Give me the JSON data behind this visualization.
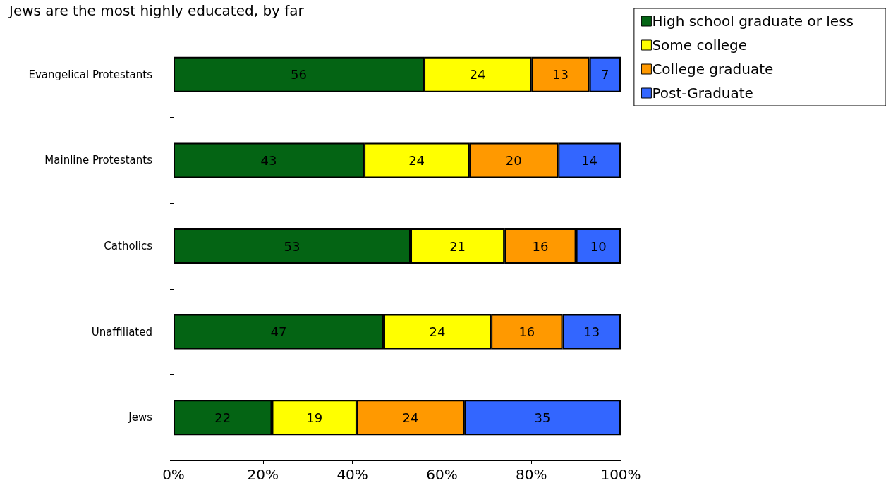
{
  "chart_data": {
    "type": "bar",
    "orientation": "horizontal",
    "stacked": true,
    "title": "Jews are the most highly educated, by far",
    "categories": [
      "Evangelical Protestants",
      "Mainline Protestants",
      "Catholics",
      "Unaffiliated",
      "Jews"
    ],
    "series": [
      {
        "name": "High school graduate or less",
        "color": "#046414",
        "values": [
          56,
          42.6,
          53,
          47,
          22
        ],
        "value_labels": [
          "56",
          "43",
          "53",
          "47",
          "22"
        ]
      },
      {
        "name": "Some college",
        "color": "#ffff00",
        "values": [
          24,
          23.5,
          21,
          24,
          19
        ],
        "value_labels": [
          "24",
          "24",
          "21",
          "24",
          "19"
        ]
      },
      {
        "name": "College graduate",
        "color": "#ff9900",
        "values": [
          13,
          19.9,
          16,
          16,
          24
        ],
        "value_labels": [
          "13",
          "20",
          "16",
          "16",
          "24"
        ]
      },
      {
        "name": "Post-Graduate",
        "color": "#3366ff",
        "values": [
          7,
          14,
          10,
          13,
          35
        ],
        "value_labels": [
          "7",
          "14",
          "10",
          "13",
          "35"
        ]
      }
    ],
    "xlim": [
      0,
      100
    ],
    "xticks": [
      {
        "value": 0,
        "label": "0%"
      },
      {
        "value": 20,
        "label": "20%"
      },
      {
        "value": 40,
        "label": "40%"
      },
      {
        "value": 60,
        "label": "60%"
      },
      {
        "value": 80,
        "label": "80%"
      },
      {
        "value": 100,
        "label": "100%"
      }
    ],
    "grid": false,
    "legend": "top right"
  }
}
